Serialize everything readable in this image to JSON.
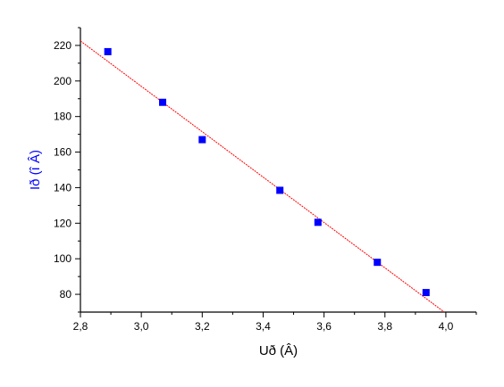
{
  "chart_data": {
    "type": "scatter",
    "xlabel": "Uð (Â)",
    "ylabel": "Ið (î Â)",
    "xlim": [
      2.8,
      4.1
    ],
    "ylim": [
      70,
      230
    ],
    "xticks": [
      "2,8",
      "3,0",
      "3,2",
      "3,4",
      "3,6",
      "3,8",
      "4,0"
    ],
    "xtick_values": [
      2.8,
      3.0,
      3.2,
      3.4,
      3.6,
      3.8,
      4.0
    ],
    "yticks": [
      "80",
      "100",
      "120",
      "140",
      "160",
      "180",
      "200",
      "220"
    ],
    "ytick_values": [
      80,
      100,
      120,
      140,
      160,
      180,
      200,
      220
    ],
    "grid": false,
    "series": [
      {
        "x": [
          2.89,
          3.07,
          3.2,
          3.455,
          3.58,
          3.775,
          3.935
        ],
        "y": [
          216.5,
          188,
          167,
          138.5,
          120.5,
          98,
          81
        ],
        "color": "#0000ff",
        "marker": "square"
      }
    ],
    "fit_line": {
      "x": [
        2.8,
        3.995
      ],
      "y": [
        222.5,
        70
      ],
      "color": "#ff0000"
    },
    "colors": {
      "xlabel": "#000000",
      "ylabel": "#0000ff"
    }
  }
}
